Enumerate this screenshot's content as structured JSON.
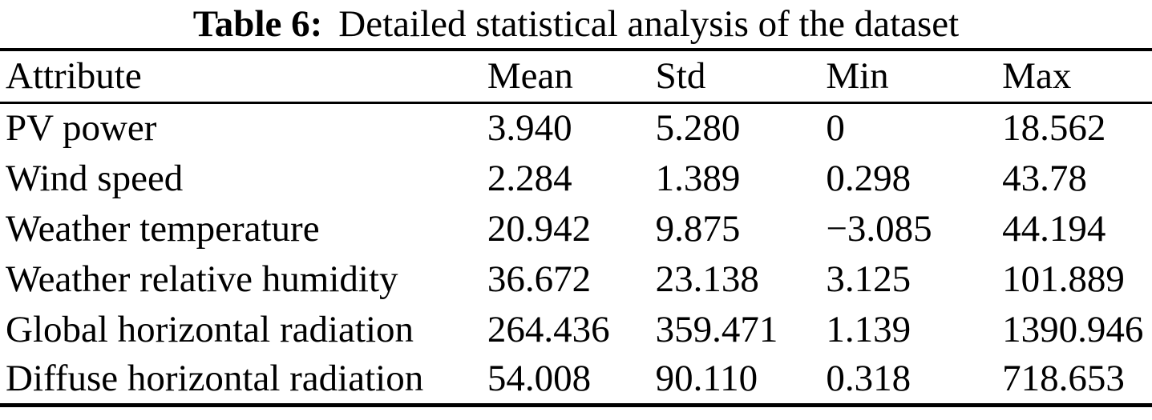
{
  "caption": {
    "label": "Table 6:",
    "text": "Detailed statistical analysis of the dataset"
  },
  "table": {
    "columns": [
      "Attribute",
      "Mean",
      "Std",
      "Min",
      "Max"
    ],
    "rows": [
      {
        "attribute": "PV power",
        "mean": "3.940",
        "std": "5.280",
        "min": "0",
        "max": "18.562"
      },
      {
        "attribute": "Wind speed",
        "mean": "2.284",
        "std": "1.389",
        "min": "0.298",
        "max": "43.78"
      },
      {
        "attribute": "Weather temperature",
        "mean": "20.942",
        "std": "9.875",
        "min": "−3.085",
        "max": "44.194"
      },
      {
        "attribute": "Weather relative humidity",
        "mean": "36.672",
        "std": "23.138",
        "min": "3.125",
        "max": "101.889"
      },
      {
        "attribute": "Global horizontal radiation",
        "mean": "264.436",
        "std": "359.471",
        "min": "1.139",
        "max": "1390.946"
      },
      {
        "attribute": "Diffuse horizontal radiation",
        "mean": "54.008",
        "std": "90.110",
        "min": "0.318",
        "max": "718.653"
      }
    ]
  },
  "chart_data": {
    "type": "table",
    "title": "Table 6: Detailed statistical analysis of the dataset",
    "columns": [
      "Attribute",
      "Mean",
      "Std",
      "Min",
      "Max"
    ],
    "rows": [
      [
        "PV power",
        3.94,
        5.28,
        0,
        18.562
      ],
      [
        "Wind speed",
        2.284,
        1.389,
        0.298,
        43.78
      ],
      [
        "Weather temperature",
        20.942,
        9.875,
        -3.085,
        44.194
      ],
      [
        "Weather relative humidity",
        36.672,
        23.138,
        3.125,
        101.889
      ],
      [
        "Global horizontal radiation",
        264.436,
        359.471,
        1.139,
        1390.946
      ],
      [
        "Diffuse horizontal radiation",
        54.008,
        90.11,
        0.318,
        718.653
      ]
    ]
  },
  "colors": {
    "text": "#000000",
    "background": "#ffffff",
    "rule": "#000000"
  }
}
